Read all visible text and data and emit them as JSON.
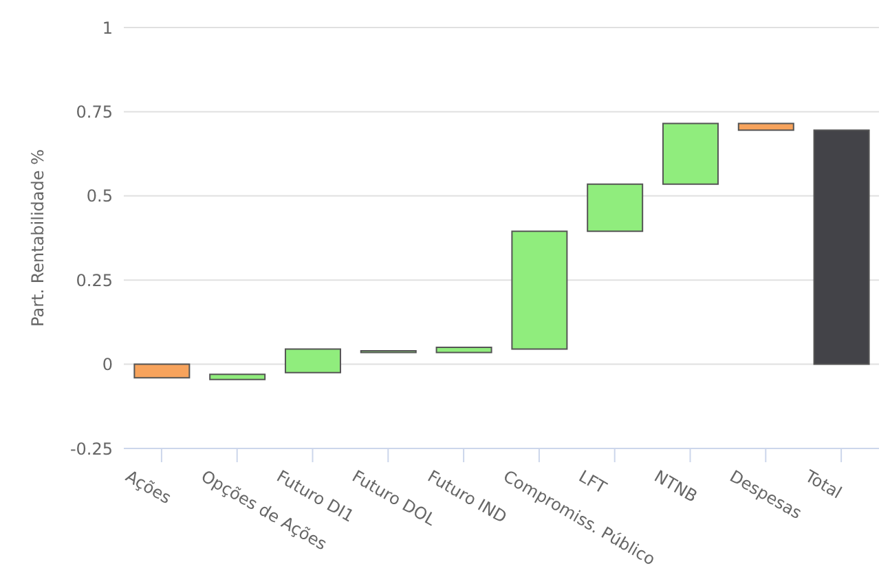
{
  "chart_data": {
    "type": "bar",
    "ylabel": "Part. Rentabilidade %",
    "categories": [
      "Ações",
      "Opções de Ações",
      "Futuro DI1",
      "Futuro DOL",
      "Futuro IND",
      "Compromiss. Público",
      "LFT",
      "NTNB",
      "Despesas",
      "Total"
    ],
    "base": [
      0,
      -0.045,
      -0.025,
      0.035,
      0.035,
      0.045,
      0.395,
      0.535,
      0.715,
      0
    ],
    "values": [
      -0.04,
      0.015,
      0.07,
      0.005,
      0.015,
      0.35,
      0.14,
      0.18,
      -0.02,
      0.695
    ],
    "colors": [
      "#f7a35c",
      "#90ed7d",
      "#90ed7d",
      "#90ed7d",
      "#90ed7d",
      "#90ed7d",
      "#90ed7d",
      "#90ed7d",
      "#f7a35c",
      "#434348"
    ],
    "ylim": [
      -0.25,
      1
    ],
    "yticks": [
      -0.25,
      0,
      0.25,
      0.5,
      0.75,
      1
    ],
    "grid": "y"
  }
}
